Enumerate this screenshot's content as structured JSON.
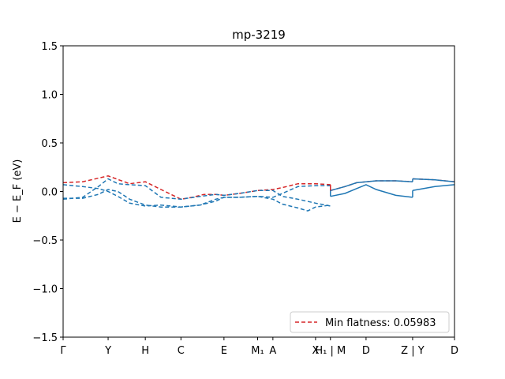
{
  "chart_data": {
    "type": "line",
    "title": "mp-3219",
    "ylabel": "E − E_F (eV)",
    "ylim": [
      -1.5,
      1.5
    ],
    "xlim": [
      0,
      1
    ],
    "yticks": [
      -1.5,
      -1.0,
      -0.5,
      0.0,
      0.5,
      1.0,
      1.5
    ],
    "ytick_labels": [
      "−1.5",
      "−1.0",
      "−0.5",
      "0.0",
      "0.5",
      "1.0",
      "1.5"
    ],
    "kpoint_labels": [
      {
        "label": "Γ",
        "x": 0.0
      },
      {
        "label": "Y",
        "x": 0.115
      },
      {
        "label": "H",
        "x": 0.21
      },
      {
        "label": "C",
        "x": 0.301
      },
      {
        "label": "E",
        "x": 0.411
      },
      {
        "label": "M₁",
        "x": 0.497
      },
      {
        "label": "A",
        "x": 0.536
      },
      {
        "label": "X",
        "x": 0.645
      },
      {
        "label": "H₁ | M",
        "x": 0.683
      },
      {
        "label": "D",
        "x": 0.774
      },
      {
        "label": "Z | Y",
        "x": 0.893
      },
      {
        "label": "D",
        "x": 1.0
      }
    ],
    "legend": {
      "label": "Min flatness: 0.05983",
      "placement": "lower-right"
    },
    "colors": {
      "flat_band": "#d62728",
      "bands": "#1f77b4"
    },
    "series": [
      {
        "style": "dashed",
        "color": "#d62728",
        "x": [
          0.0,
          0.05,
          0.115,
          0.17,
          0.21,
          0.25,
          0.301,
          0.33,
          0.36,
          0.39,
          0.411,
          0.45,
          0.497,
          0.536,
          0.56,
          0.6,
          0.645,
          0.683
        ],
        "y": [
          0.09,
          0.1,
          0.16,
          0.08,
          0.1,
          0.02,
          -0.08,
          -0.06,
          -0.03,
          -0.03,
          -0.04,
          -0.02,
          0.01,
          0.02,
          0.04,
          0.08,
          0.08,
          0.07
        ]
      },
      {
        "style": "dashed",
        "color": "#1f77b4",
        "x": [
          0.0,
          0.05,
          0.09,
          0.115,
          0.14,
          0.17,
          0.21,
          0.25,
          0.301,
          0.35,
          0.39,
          0.411,
          0.45,
          0.497,
          0.536,
          0.56,
          0.6,
          0.645,
          0.683
        ],
        "y": [
          0.07,
          0.05,
          0.03,
          0.0,
          -0.05,
          -0.12,
          -0.15,
          -0.14,
          -0.16,
          -0.14,
          -0.1,
          -0.06,
          -0.06,
          -0.05,
          -0.06,
          -0.02,
          0.05,
          0.06,
          0.06
        ]
      },
      {
        "style": "dashed",
        "color": "#1f77b4",
        "x": [
          0.0,
          0.05,
          0.09,
          0.115,
          0.14,
          0.17,
          0.21,
          0.25,
          0.301,
          0.35,
          0.39,
          0.411,
          0.45,
          0.497,
          0.536,
          0.56,
          0.6,
          0.645,
          0.683
        ],
        "y": [
          -0.08,
          -0.06,
          0.05,
          0.13,
          0.08,
          0.07,
          0.06,
          -0.06,
          -0.08,
          -0.05,
          -0.03,
          -0.04,
          -0.02,
          0.01,
          0.01,
          -0.05,
          -0.08,
          -0.12,
          -0.15
        ]
      },
      {
        "style": "dashed",
        "color": "#1f77b4",
        "x": [
          0.0,
          0.05,
          0.09,
          0.115,
          0.14,
          0.17,
          0.21,
          0.25,
          0.301,
          0.35,
          0.39,
          0.411,
          0.45,
          0.497,
          0.536,
          0.56,
          0.6,
          0.625,
          0.645,
          0.683
        ],
        "y": [
          -0.07,
          -0.07,
          -0.03,
          0.02,
          0.0,
          -0.08,
          -0.14,
          -0.16,
          -0.16,
          -0.14,
          -0.08,
          -0.06,
          -0.06,
          -0.05,
          -0.08,
          -0.13,
          -0.17,
          -0.2,
          -0.16,
          -0.14
        ]
      },
      {
        "style": "dashed",
        "color": "#d62728",
        "x": [
          0.683,
          0.72,
          0.75,
          0.774,
          0.8,
          0.85,
          0.893
        ],
        "y": [
          0.01,
          0.05,
          0.09,
          0.1,
          0.11,
          0.11,
          0.1
        ]
      },
      {
        "style": "dashed",
        "color": "#d62728",
        "x": [
          0.893,
          0.95,
          1.0
        ],
        "y": [
          0.13,
          0.12,
          0.1
        ]
      },
      {
        "style": "solid",
        "color": "#1f77b4",
        "x": [
          0.683,
          0.72,
          0.75,
          0.774,
          0.8,
          0.85,
          0.893
        ],
        "y": [
          0.01,
          0.05,
          0.09,
          0.1,
          0.11,
          0.11,
          0.1
        ]
      },
      {
        "style": "solid",
        "color": "#1f77b4",
        "x": [
          0.683,
          0.72,
          0.75,
          0.774,
          0.8,
          0.85,
          0.893
        ],
        "y": [
          -0.05,
          -0.02,
          0.03,
          0.07,
          0.02,
          -0.04,
          -0.06
        ]
      },
      {
        "style": "solid",
        "color": "#1f77b4",
        "x": [
          0.893,
          0.95,
          1.0
        ],
        "y": [
          0.13,
          0.12,
          0.1
        ]
      },
      {
        "style": "solid",
        "color": "#1f77b4",
        "x": [
          0.893,
          0.95,
          1.0
        ],
        "y": [
          0.01,
          0.05,
          0.07
        ]
      }
    ]
  }
}
